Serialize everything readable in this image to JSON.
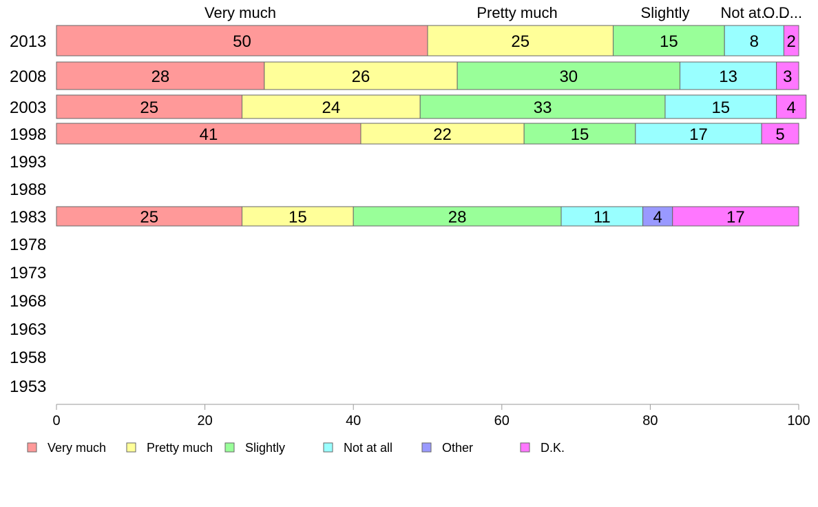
{
  "chart_data": {
    "type": "bar",
    "orientation": "horizontal",
    "stacked": true,
    "xlim": [
      0,
      100
    ],
    "x_ticks": [
      "0",
      "20",
      "40",
      "60",
      "80",
      "100"
    ],
    "categories": [
      "2013",
      "2008",
      "2003",
      "1998",
      "1993",
      "1988",
      "1983",
      "1978",
      "1973",
      "1968",
      "1963",
      "1958",
      "1953"
    ],
    "series": [
      {
        "name": "Very much",
        "color": "#ff9999",
        "values": [
          50,
          28,
          25,
          41,
          null,
          null,
          25,
          null,
          null,
          null,
          null,
          null,
          null
        ]
      },
      {
        "name": "Pretty much",
        "color": "#ffff99",
        "values": [
          25,
          26,
          24,
          22,
          null,
          null,
          15,
          null,
          null,
          null,
          null,
          null,
          null
        ]
      },
      {
        "name": "Slightly",
        "color": "#99ff99",
        "values": [
          15,
          30,
          33,
          15,
          null,
          null,
          28,
          null,
          null,
          null,
          null,
          null,
          null
        ]
      },
      {
        "name": "Not at all",
        "color": "#99ffff",
        "values": [
          8,
          13,
          15,
          17,
          null,
          null,
          11,
          null,
          null,
          null,
          null,
          null,
          null
        ]
      },
      {
        "name": "Other",
        "color": "#9999ff",
        "values": [
          0,
          0,
          0,
          0,
          null,
          null,
          4,
          null,
          null,
          null,
          null,
          null,
          null
        ]
      },
      {
        "name": "D.K.",
        "color": "#ff77ff",
        "values": [
          2,
          3,
          4,
          5,
          null,
          null,
          17,
          null,
          null,
          null,
          null,
          null,
          null
        ]
      }
    ],
    "top_labels": [
      "Very much",
      "Pretty much",
      "Slightly",
      "Not at...",
      "O...",
      "D..."
    ],
    "legend": [
      "Very much",
      "Pretty much",
      "Slightly",
      "Not at all",
      "Other",
      "D.K."
    ],
    "legend_position": "bottom",
    "grid": false
  }
}
